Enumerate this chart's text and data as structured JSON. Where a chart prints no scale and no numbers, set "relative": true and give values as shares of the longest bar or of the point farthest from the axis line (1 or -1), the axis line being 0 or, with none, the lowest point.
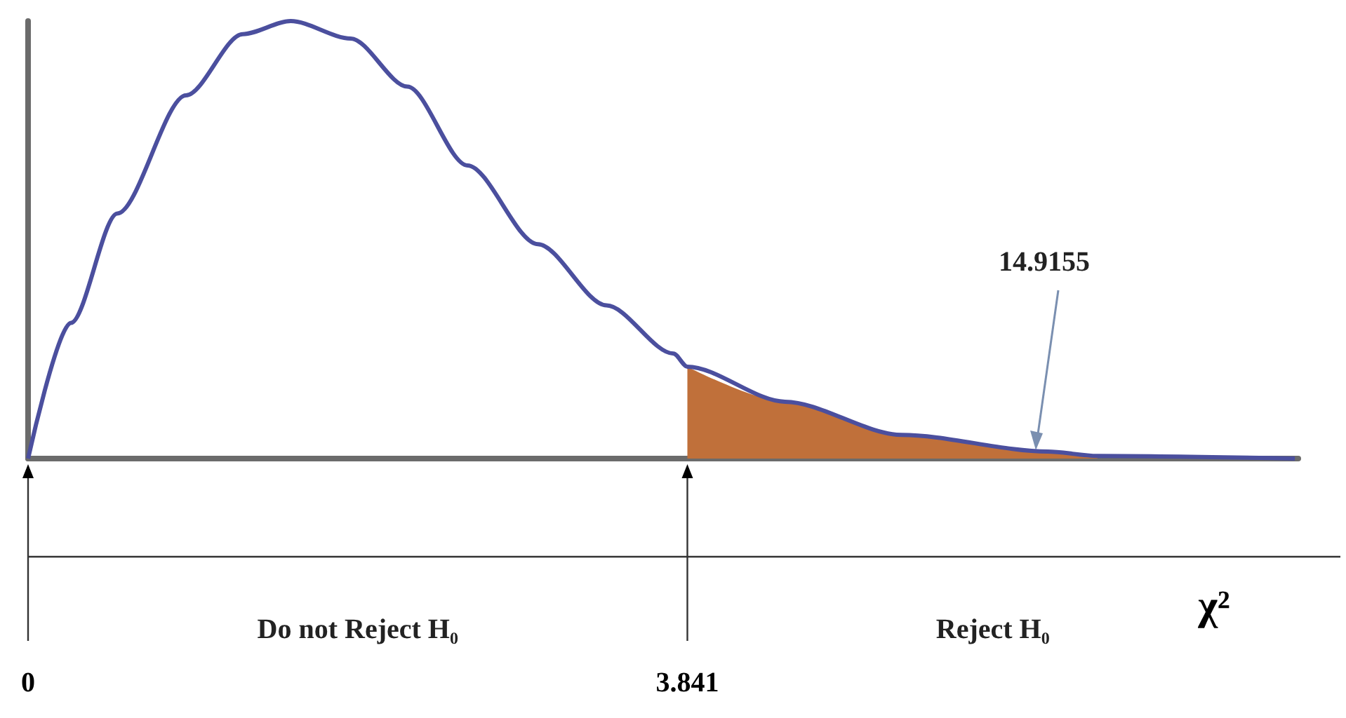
{
  "chart_data": {
    "type": "line",
    "relative": true,
    "xlabel": "χ²",
    "xlim": [
      0,
      7.4
    ],
    "xticks": [
      0,
      3.841
    ],
    "tick_labels": "x",
    "grid": false,
    "marker": "none",
    "line_style": "solid",
    "annotations": [
      "Do not Reject H₀",
      "Reject H₀",
      "14.9155"
    ],
    "series": [
      {
        "color": "#4b4f9e",
        "x": [
          0,
          0.25,
          0.52,
          0.92,
          1.25,
          1.53,
          1.88,
          2.21,
          2.56,
          2.97,
          3.37,
          3.76,
          3.841,
          4.41,
          5.09,
          5.94,
          6.23,
          7.38
        ],
        "values": [
          0,
          0.31,
          0.56,
          0.83,
          0.97,
          1,
          0.96,
          0.85,
          0.67,
          0.49,
          0.35,
          0.24,
          0.21,
          0.13,
          0.054,
          0.016,
          0.006,
          0
        ]
      },
      {
        "type": "area",
        "color": "#c0703a",
        "x": [
          3.841,
          4.41,
          5.09,
          5.94,
          6.23
        ],
        "values": [
          0.21,
          0.13,
          0.054,
          0.016,
          0.006
        ]
      }
    ]
  }
}
